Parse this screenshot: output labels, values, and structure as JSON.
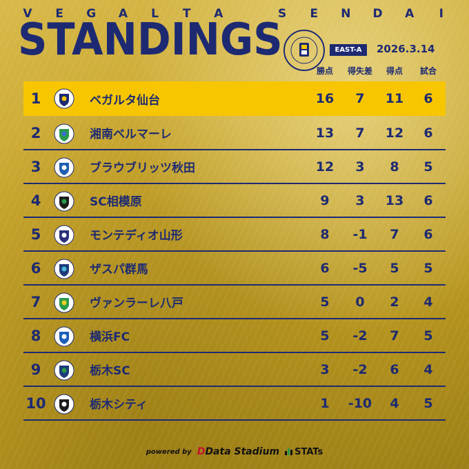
{
  "header": {
    "brand_spelled": [
      "V",
      "E",
      "G",
      "A",
      "L",
      "T",
      "A",
      "",
      "S",
      "E",
      "N",
      "D",
      "A",
      "I"
    ],
    "title": "STANDINGS",
    "group": "EAST-A",
    "date": "2026.3.14"
  },
  "columns": [
    "勝点",
    "得失差",
    "得点",
    "試合"
  ],
  "rows": [
    {
      "rank": "1",
      "team": "ベガルタ仙台",
      "pts": "16",
      "gd": "7",
      "gf": "11",
      "played": "6",
      "logo_color": "#1d2a72",
      "logo_accent": "#f7c600",
      "logo": "crest-icon"
    },
    {
      "rank": "2",
      "team": "湘南ベルマーレ",
      "pts": "13",
      "gd": "7",
      "gf": "12",
      "played": "6",
      "logo_color": "#2a9a4b",
      "logo_accent": "#3d6fd0",
      "logo": "crest-icon"
    },
    {
      "rank": "3",
      "team": "ブラウブリッツ秋田",
      "pts": "12",
      "gd": "3",
      "gf": "8",
      "played": "5",
      "logo_color": "#1f5fb0",
      "logo_accent": "#ffffff",
      "logo": "crest-icon"
    },
    {
      "rank": "4",
      "team": "SC相模原",
      "pts": "9",
      "gd": "3",
      "gf": "13",
      "played": "6",
      "logo_color": "#1c1c1c",
      "logo_accent": "#2a9a4b",
      "logo": "crest-icon"
    },
    {
      "rank": "5",
      "team": "モンテディオ山形",
      "pts": "8",
      "gd": "-1",
      "gf": "7",
      "played": "6",
      "logo_color": "#2b2f7a",
      "logo_accent": "#ffffff",
      "logo": "crest-icon"
    },
    {
      "rank": "6",
      "team": "ザスパ群馬",
      "pts": "6",
      "gd": "-5",
      "gf": "5",
      "played": "5",
      "logo_color": "#1d3b7a",
      "logo_accent": "#4fb8e0",
      "logo": "crest-icon"
    },
    {
      "rank": "7",
      "team": "ヴァンラーレ八戸",
      "pts": "5",
      "gd": "0",
      "gf": "2",
      "played": "4",
      "logo_color": "#2a9a4b",
      "logo_accent": "#f0d020",
      "logo": "crest-icon"
    },
    {
      "rank": "8",
      "team": "横浜FC",
      "pts": "5",
      "gd": "-2",
      "gf": "7",
      "played": "5",
      "logo_color": "#1d5fb8",
      "logo_accent": "#ffffff",
      "logo": "crest-icon"
    },
    {
      "rank": "9",
      "team": "栃木SC",
      "pts": "3",
      "gd": "-2",
      "gf": "6",
      "played": "4",
      "logo_color": "#1d3b7a",
      "logo_accent": "#2a9a4b",
      "logo": "crest-icon"
    },
    {
      "rank": "10",
      "team": "栃木シティ",
      "pts": "1",
      "gd": "-10",
      "gf": "4",
      "played": "5",
      "logo_color": "#1c1c1c",
      "logo_accent": "#ffffff",
      "logo": "crest-icon"
    }
  ],
  "footer": {
    "powered_by": "powered by",
    "data_stadium": "Data Stadium",
    "stats": "STATs"
  },
  "colors": {
    "navy": "#1d2a72",
    "highlight": "#f7c600",
    "gold": "#c8a52c"
  }
}
